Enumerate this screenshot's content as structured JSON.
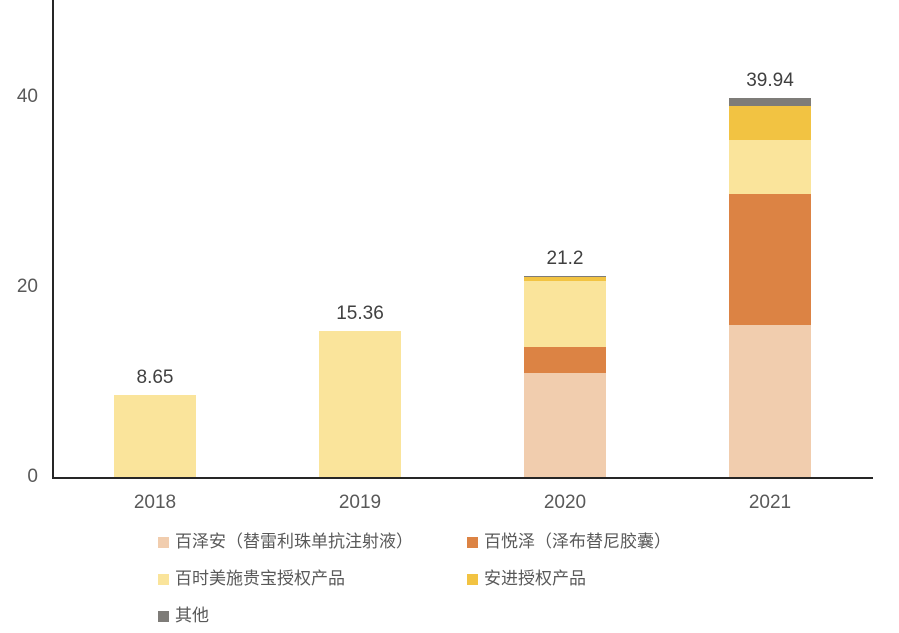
{
  "chart_data": {
    "type": "bar",
    "stacked": true,
    "categories": [
      "2018",
      "2019",
      "2020",
      "2021"
    ],
    "series": [
      {
        "name": "百泽安（替雷利珠单抗注射液）",
        "color": "#F1CDAE",
        "values": [
          0,
          0,
          10.9,
          16.0
        ]
      },
      {
        "name": "百悦泽（泽布替尼胶囊）",
        "color": "#DC8344",
        "values": [
          0,
          0,
          2.8,
          13.8
        ]
      },
      {
        "name": "百时美施贵宝授权产品",
        "color": "#FAE49B",
        "values": [
          8.65,
          15.36,
          6.9,
          5.7
        ]
      },
      {
        "name": "安进授权产品",
        "color": "#F2C342",
        "values": [
          0,
          0,
          0.5,
          3.6
        ]
      },
      {
        "name": "其他",
        "color": "#7E7C78",
        "values": [
          0,
          0,
          0.1,
          0.84
        ]
      }
    ],
    "total_labels": [
      "8.65",
      "15.36",
      "21.2",
      "39.94"
    ],
    "yticks": [
      "0",
      "20",
      "40"
    ],
    "ytick_values": [
      0,
      20,
      40
    ],
    "ylim": [
      0,
      50.2
    ],
    "xlabel": "",
    "ylabel": "",
    "title": "",
    "grid": false,
    "legend_position": "bottom"
  },
  "axis_colors": {
    "line": "#262626",
    "tick_text": "#595959",
    "data_label_text": "#404040"
  }
}
